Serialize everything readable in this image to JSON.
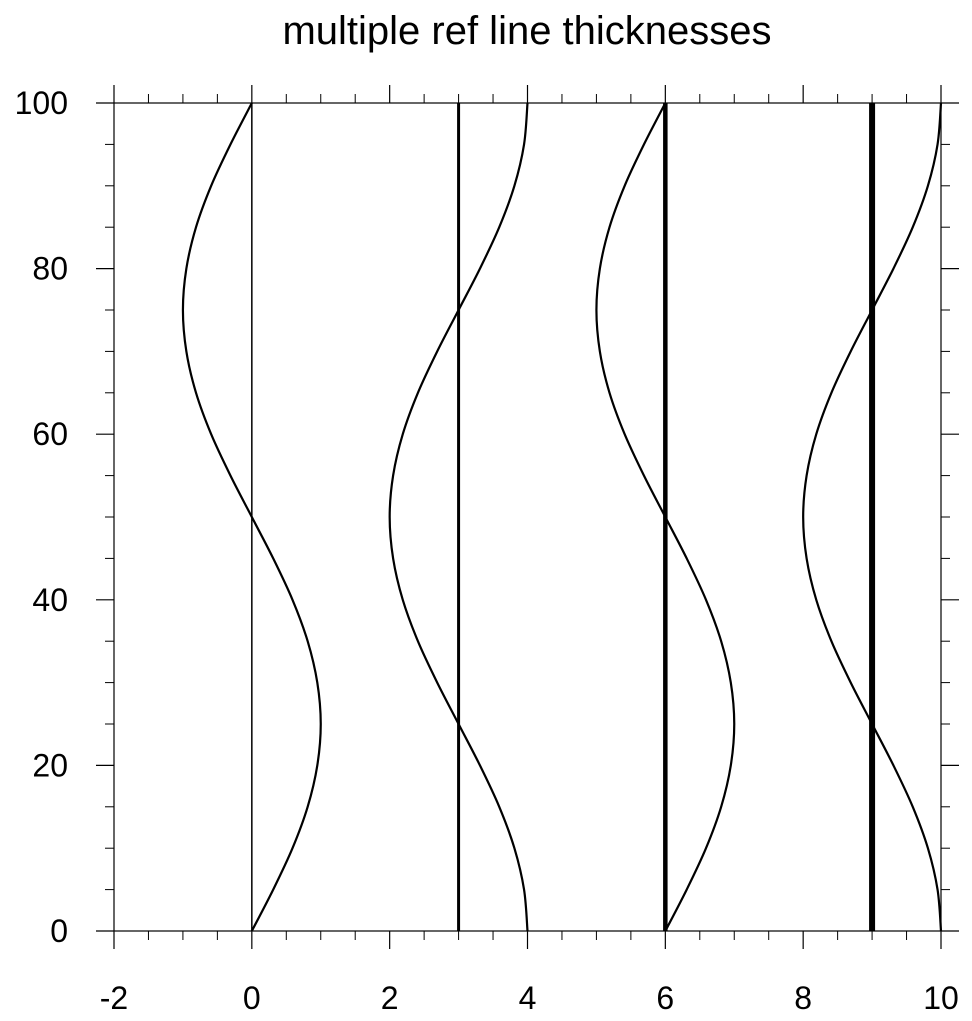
{
  "chart_data": {
    "type": "line",
    "title": "multiple ref line thicknesses",
    "xlabel": "",
    "ylabel": "",
    "xlim": [
      -2,
      10
    ],
    "ylim": [
      0,
      100
    ],
    "grid": false,
    "x_ticks": [
      -2,
      0,
      2,
      4,
      6,
      8,
      10
    ],
    "x_tick_labels": [
      "-2",
      "0",
      "2",
      "4",
      "6",
      "8",
      "10"
    ],
    "y_ticks": [
      0,
      20,
      40,
      60,
      80,
      100
    ],
    "y_tick_labels": [
      "0",
      "20",
      "40",
      "60",
      "80",
      "100"
    ],
    "x_minor_step": 0.5,
    "y_minor_step": 5,
    "reference_lines": [
      {
        "x": 0,
        "thickness": 1
      },
      {
        "x": 3,
        "thickness": 2
      },
      {
        "x": 6,
        "thickness": 3
      },
      {
        "x": 9,
        "thickness": 4
      }
    ],
    "series": [
      {
        "y": [
          0,
          5,
          10,
          15,
          20,
          25,
          30,
          35,
          40,
          45,
          50,
          55,
          60,
          65,
          70,
          75,
          80,
          85,
          90,
          95,
          100
        ],
        "x": [
          0,
          0.31,
          0.59,
          0.81,
          0.95,
          1.0,
          0.95,
          0.81,
          0.59,
          0.31,
          0,
          -0.31,
          -0.59,
          -0.81,
          -0.95,
          -1.0,
          -0.95,
          -0.81,
          -0.59,
          -0.31,
          0
        ]
      },
      {
        "y": [
          0,
          5,
          10,
          15,
          20,
          25,
          30,
          35,
          40,
          45,
          50,
          55,
          60,
          65,
          70,
          75,
          80,
          85,
          90,
          95,
          100
        ],
        "x": [
          4.0,
          3.95,
          3.81,
          3.59,
          3.31,
          3.0,
          2.69,
          2.41,
          2.19,
          2.05,
          2.0,
          2.05,
          2.19,
          2.41,
          2.69,
          3.0,
          3.31,
          3.59,
          3.81,
          3.95,
          4.0
        ]
      },
      {
        "y": [
          0,
          5,
          10,
          15,
          20,
          25,
          30,
          35,
          40,
          45,
          50,
          55,
          60,
          65,
          70,
          75,
          80,
          85,
          90,
          95,
          100
        ],
        "x": [
          6,
          6.31,
          6.59,
          6.81,
          6.95,
          7.0,
          6.95,
          6.81,
          6.59,
          6.31,
          6,
          5.69,
          5.41,
          5.19,
          5.05,
          5.0,
          5.05,
          5.19,
          5.41,
          5.69,
          6
        ]
      },
      {
        "y": [
          0,
          5,
          10,
          15,
          20,
          25,
          30,
          35,
          40,
          45,
          50,
          55,
          60,
          65,
          70,
          75,
          80,
          85,
          90,
          95,
          100
        ],
        "x": [
          10.0,
          9.95,
          9.81,
          9.59,
          9.31,
          9.0,
          8.69,
          8.41,
          8.19,
          8.05,
          8.0,
          8.05,
          8.19,
          8.41,
          8.69,
          9.0,
          9.31,
          9.59,
          9.81,
          9.95,
          10.0
        ]
      }
    ],
    "line_color": "#000000",
    "background_color": "#ffffff"
  }
}
